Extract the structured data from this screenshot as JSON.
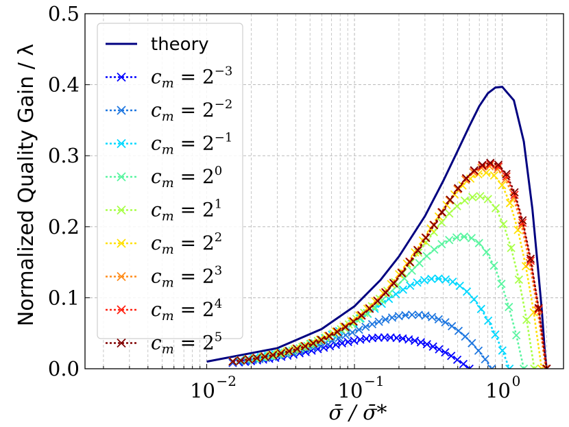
{
  "chart_data": {
    "type": "line",
    "xscale": "log",
    "xlim": [
      0.0015,
      2.6
    ],
    "ylim": [
      0,
      0.5
    ],
    "grid": true,
    "xlabel": "σ̄ / σ̄*",
    "ylabel": "Normalized Quality Gain / λ",
    "x_tick_labels": [
      "10",
      "10",
      "10"
    ],
    "x_tick_exponents": [
      "−2",
      "−1",
      "0"
    ],
    "x_tick_values": [
      0.01,
      0.1,
      1
    ],
    "y_ticks": [
      0.0,
      0.1,
      0.2,
      0.3,
      0.4,
      0.5
    ],
    "y_tick_labels": [
      "0.0",
      "0.1",
      "0.2",
      "0.3",
      "0.4",
      "0.5"
    ],
    "legend_position": "upper-left",
    "theory": {
      "name": "theory",
      "color": "#000080",
      "x": [
        0.01,
        0.03,
        0.06,
        0.1,
        0.15,
        0.2,
        0.3,
        0.4,
        0.5,
        0.6,
        0.7,
        0.8,
        0.9,
        1.0,
        1.2,
        1.4,
        1.6,
        1.75,
        1.85,
        1.95,
        2.0
      ],
      "y": [
        0.01,
        0.029,
        0.056,
        0.088,
        0.125,
        0.158,
        0.215,
        0.265,
        0.307,
        0.342,
        0.37,
        0.388,
        0.396,
        0.397,
        0.378,
        0.32,
        0.225,
        0.14,
        0.085,
        0.02,
        0.0
      ]
    },
    "series": [
      {
        "name": "c_m = 2^-3",
        "base": "c",
        "sub": "m",
        "exp": "−3",
        "color": "#0000ff",
        "peak_x": 0.16,
        "peak_y": 0.044,
        "zero_x": 0.6
      },
      {
        "name": "c_m = 2^-2",
        "base": "c",
        "sub": "m",
        "exp": "−2",
        "color": "#1f77e0",
        "peak_x": 0.25,
        "peak_y": 0.076,
        "zero_x": 0.85
      },
      {
        "name": "c_m = 2^-1",
        "base": "c",
        "sub": "m",
        "exp": "−1",
        "color": "#00d8ff",
        "peak_x": 0.36,
        "peak_y": 0.127,
        "zero_x": 1.12
      },
      {
        "name": "c_m = 2^0",
        "base": "c",
        "sub": "m",
        "exp": "0",
        "color": "#5af5a0",
        "peak_x": 0.55,
        "peak_y": 0.186,
        "zero_x": 1.4
      },
      {
        "name": "c_m = 2^1",
        "base": "c",
        "sub": "m",
        "exp": "1",
        "color": "#a8ff48",
        "peak_x": 0.7,
        "peak_y": 0.243,
        "zero_x": 1.65
      },
      {
        "name": "c_m = 2^2",
        "base": "c",
        "sub": "m",
        "exp": "2",
        "color": "#ffe000",
        "peak_x": 0.78,
        "peak_y": 0.276,
        "zero_x": 1.85
      },
      {
        "name": "c_m = 2^3",
        "base": "c",
        "sub": "m",
        "exp": "3",
        "color": "#ff8c1a",
        "peak_x": 0.82,
        "peak_y": 0.285,
        "zero_x": 1.97
      },
      {
        "name": "c_m = 2^4",
        "base": "c",
        "sub": "m",
        "exp": "4",
        "color": "#ff2010",
        "peak_x": 0.84,
        "peak_y": 0.288,
        "zero_x": 2.0
      },
      {
        "name": "c_m = 2^5",
        "base": "c",
        "sub": "m",
        "exp": "5",
        "color": "#800000",
        "peak_x": 0.85,
        "peak_y": 0.29,
        "zero_x": 2.0
      }
    ],
    "series_x_start": 0.015,
    "points_per_series": 40
  }
}
